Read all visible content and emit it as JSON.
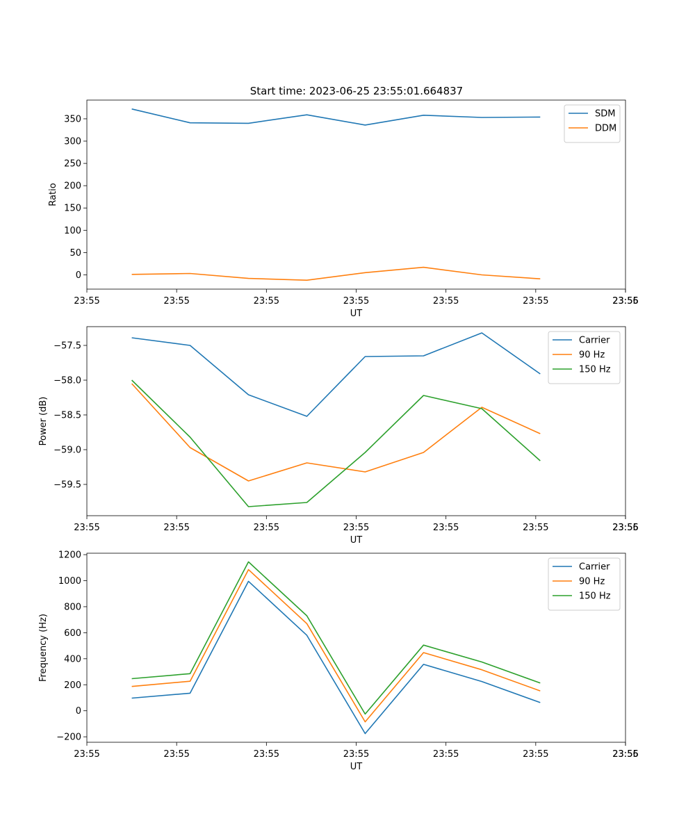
{
  "figure_title": "Start time: 2023-06-25 23:55:01.664837",
  "chart_data": [
    {
      "type": "line",
      "xlabel": "UT",
      "ylabel": "Ratio",
      "xtick_labels": [
        "23:55",
        "23:55",
        "23:55",
        "23:55",
        "23:55",
        "23:55",
        "23:55"
      ],
      "xlim": [
        0,
        12
      ],
      "x": [
        1,
        2.3,
        3.6,
        4.9,
        6.2,
        7.5,
        8.8,
        10.1
      ],
      "ylim": [
        -32,
        392
      ],
      "yticks": [
        0,
        50,
        100,
        150,
        200,
        250,
        300,
        350
      ],
      "legend_position": "top-right",
      "series": [
        {
          "name": "SDM",
          "color": "#1f77b4",
          "values": [
            372,
            341,
            340,
            359,
            336,
            358,
            353,
            354
          ]
        },
        {
          "name": "DDM",
          "color": "#ff7f0e",
          "values": [
            1,
            3,
            -8,
            -12,
            5,
            17,
            0,
            -9
          ]
        }
      ]
    },
    {
      "type": "line",
      "xlabel": "UT",
      "ylabel": "Power (dB)",
      "xtick_labels": [
        "23:55",
        "23:55",
        "23:55",
        "23:55",
        "23:55",
        "23:55",
        "23:55"
      ],
      "xlim": [
        0,
        12
      ],
      "x": [
        1,
        2.3,
        3.6,
        4.9,
        6.2,
        7.5,
        8.8,
        10.1
      ],
      "ylim": [
        -59.95,
        -57.23
      ],
      "yticks": [
        -59.5,
        -59.0,
        -58.5,
        -58.0,
        -57.5
      ],
      "ytick_labels": [
        "−59.5",
        "−59.0",
        "−58.5",
        "−58.0",
        "−57.5"
      ],
      "legend_position": "top-right",
      "series": [
        {
          "name": "Carrier",
          "color": "#1f77b4",
          "values": [
            -57.39,
            -57.5,
            -58.21,
            -58.52,
            -57.66,
            -57.65,
            -57.32,
            -57.91
          ]
        },
        {
          "name": "90 Hz",
          "color": "#ff7f0e",
          "values": [
            -58.05,
            -58.97,
            -59.45,
            -59.19,
            -59.32,
            -59.04,
            -58.39,
            -58.77
          ]
        },
        {
          "name": "150 Hz",
          "color": "#2ca02c",
          "values": [
            -58.0,
            -58.82,
            -59.82,
            -59.76,
            -59.04,
            -58.22,
            -58.41,
            -59.16
          ]
        }
      ]
    },
    {
      "type": "line",
      "xlabel": "UT",
      "ylabel": "Frequency (Hz)",
      "xtick_labels": [
        "23:55",
        "23:55",
        "23:55",
        "23:55",
        "23:55",
        "23:55",
        "23:55"
      ],
      "xlim": [
        0,
        12
      ],
      "x": [
        1,
        2.3,
        3.6,
        4.9,
        6.2,
        7.5,
        8.8,
        10.1
      ],
      "ylim": [
        -242,
        1211
      ],
      "yticks": [
        -200,
        0,
        200,
        400,
        600,
        800,
        1000,
        1200
      ],
      "ytick_labels": [
        "−200",
        "0",
        "200",
        "400",
        "600",
        "800",
        "1000",
        "1200"
      ],
      "legend_position": "top-right",
      "series": [
        {
          "name": "Carrier",
          "color": "#1f77b4",
          "values": [
            97,
            135,
            995,
            580,
            -175,
            357,
            225,
            63
          ]
        },
        {
          "name": "90 Hz",
          "color": "#ff7f0e",
          "values": [
            187,
            227,
            1085,
            670,
            -85,
            447,
            315,
            153
          ]
        },
        {
          "name": "150 Hz",
          "color": "#2ca02c",
          "values": [
            247,
            285,
            1145,
            730,
            -25,
            505,
            375,
            213
          ]
        }
      ]
    }
  ]
}
